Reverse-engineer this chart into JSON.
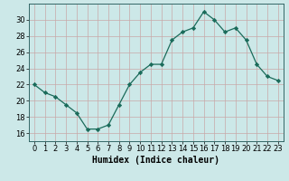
{
  "x": [
    0,
    1,
    2,
    3,
    4,
    5,
    6,
    7,
    8,
    9,
    10,
    11,
    12,
    13,
    14,
    15,
    16,
    17,
    18,
    19,
    20,
    21,
    22,
    23
  ],
  "y": [
    22,
    21,
    20.5,
    19.5,
    18.5,
    16.5,
    16.5,
    17,
    19.5,
    22,
    23.5,
    24.5,
    24.5,
    27.5,
    28.5,
    29,
    31,
    30,
    28.5,
    29,
    27.5,
    24.5,
    23,
    22.5
  ],
  "line_color": "#1a6b5a",
  "marker": "D",
  "marker_size": 2.2,
  "bg_color": "#cce8e8",
  "grid_color_minor": "#c8a8a8",
  "grid_color_major": "#c8a8a8",
  "xlabel": "Humidex (Indice chaleur)",
  "ylim": [
    15,
    32
  ],
  "xlim": [
    -0.5,
    23.5
  ],
  "yticks": [
    16,
    18,
    20,
    22,
    24,
    26,
    28,
    30
  ],
  "xticks": [
    0,
    1,
    2,
    3,
    4,
    5,
    6,
    7,
    8,
    9,
    10,
    11,
    12,
    13,
    14,
    15,
    16,
    17,
    18,
    19,
    20,
    21,
    22,
    23
  ],
  "tick_fontsize": 6,
  "xlabel_fontsize": 7
}
